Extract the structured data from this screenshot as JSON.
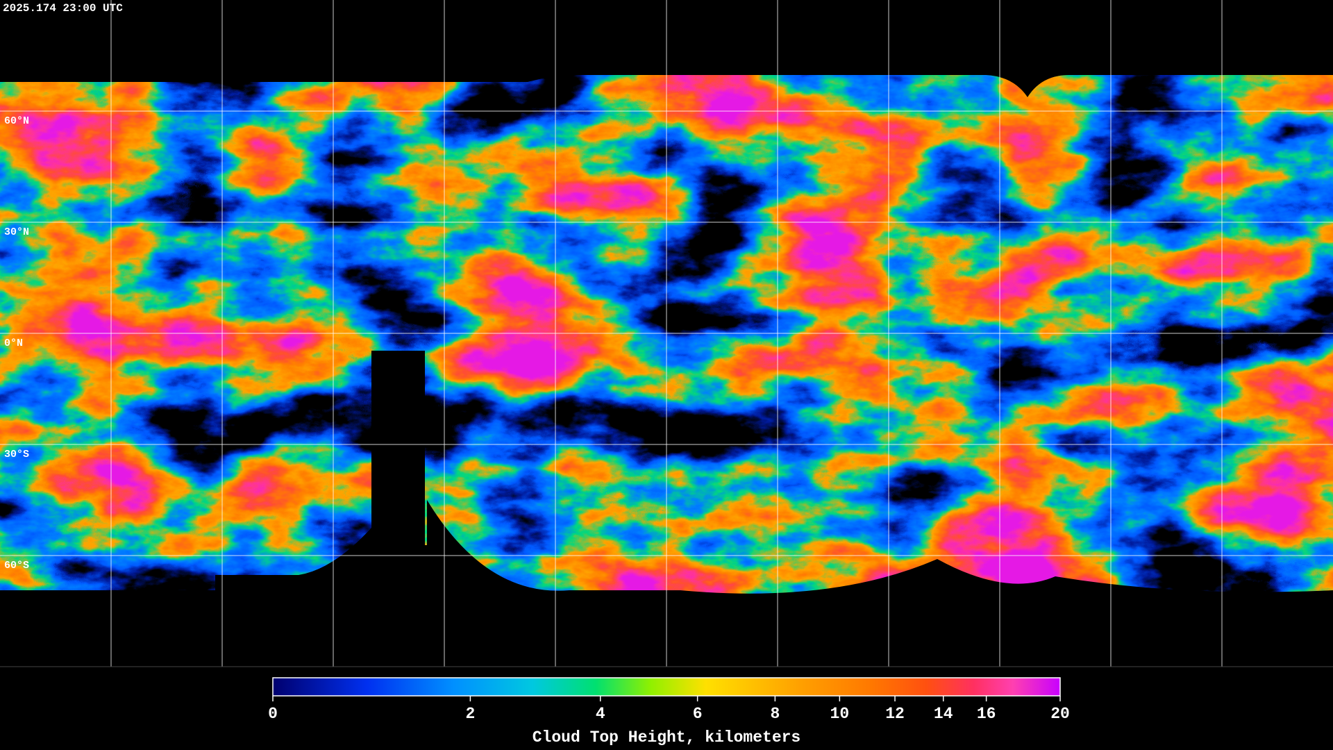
{
  "header": {
    "timestamp": "2025.174 23:00 UTC"
  },
  "map": {
    "latitudes": [
      {
        "value": 60,
        "label": "60°N"
      },
      {
        "value": 30,
        "label": "30°N"
      },
      {
        "value": 0,
        "label": "0°N"
      },
      {
        "value": -30,
        "label": "30°S"
      },
      {
        "value": -60,
        "label": "60°S"
      }
    ]
  },
  "colorbar": {
    "title": "Cloud Top Height, kilometers",
    "range": [
      0,
      20
    ],
    "ticks": [
      0,
      2,
      4,
      6,
      8,
      10,
      12,
      14,
      16,
      20
    ]
  }
}
